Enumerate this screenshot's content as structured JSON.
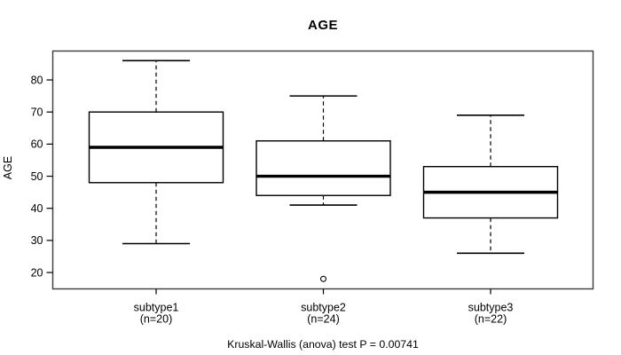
{
  "chart_data": {
    "type": "boxplot",
    "title": "AGE",
    "xlabel": "",
    "ylabel": "AGE",
    "caption": "Kruskal-Wallis (anova) test P = 0.00741",
    "y_ticks": [
      20,
      30,
      40,
      50,
      60,
      70,
      80
    ],
    "ylim": [
      14.9,
      89.0
    ],
    "grid": false,
    "legend": "none",
    "groups": [
      {
        "label": "subtype1",
        "sublabel": "(n=20)",
        "n": 20,
        "whisker_low": 29,
        "q1": 48,
        "median": 59,
        "q3": 70,
        "whisker_high": 86,
        "outliers": []
      },
      {
        "label": "subtype2",
        "sublabel": "(n=24)",
        "n": 24,
        "whisker_low": 41,
        "q1": 44,
        "median": 50,
        "q3": 61,
        "whisker_high": 75,
        "outliers": [
          18
        ]
      },
      {
        "label": "subtype3",
        "sublabel": "(n=22)",
        "n": 22,
        "whisker_low": 26,
        "q1": 37,
        "median": 45,
        "q3": 53,
        "whisker_high": 69,
        "outliers": []
      }
    ],
    "colors": {
      "background": "#ffffff",
      "line": "#000000",
      "frame": "#3a3a3a",
      "box_fill": "#ffffff"
    }
  }
}
